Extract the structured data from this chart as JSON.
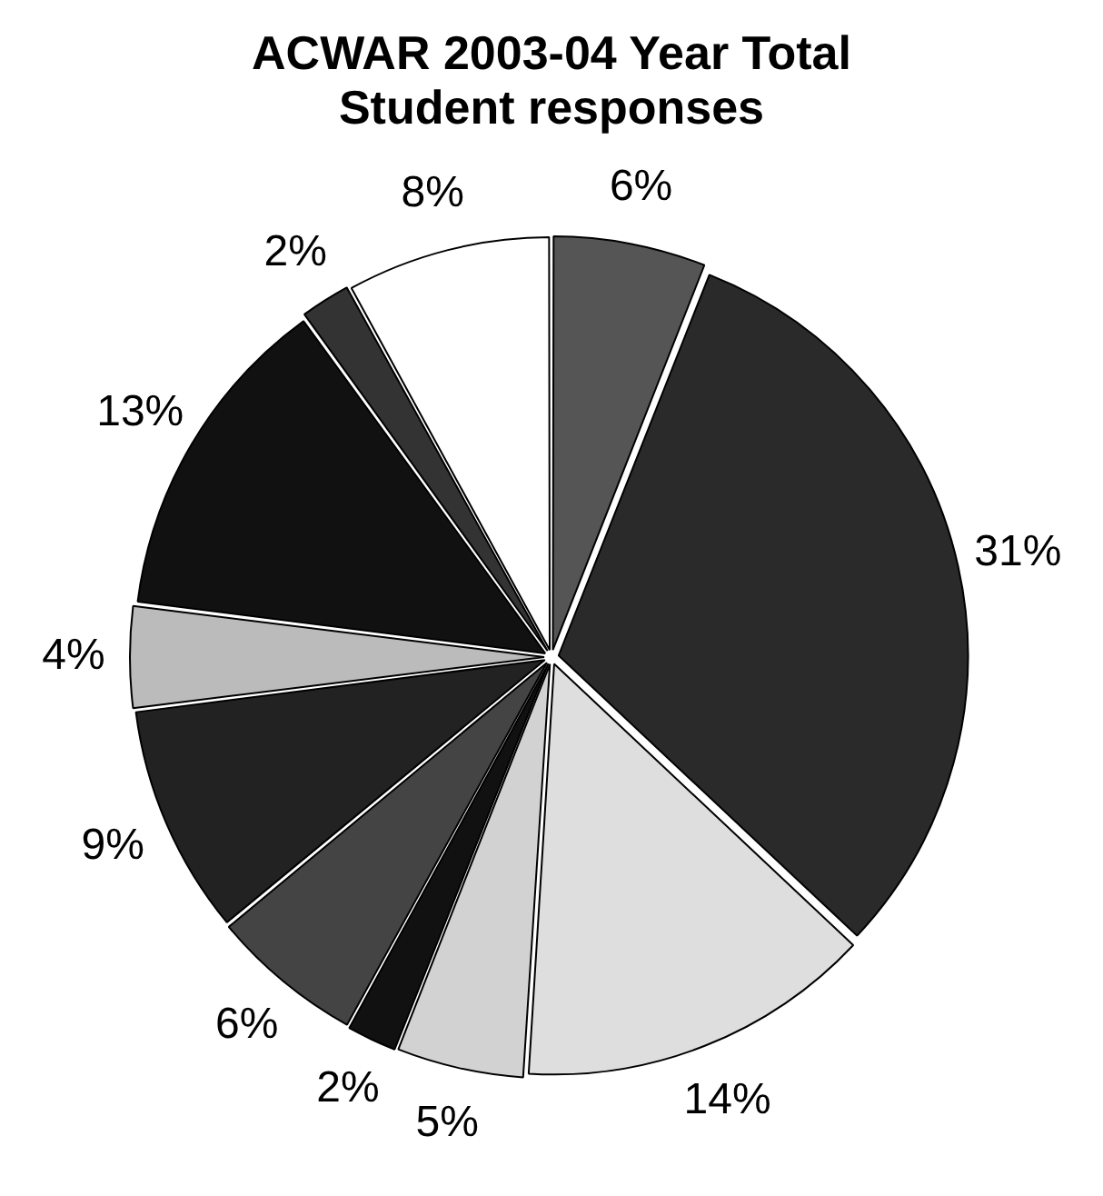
{
  "chart_data": {
    "type": "pie",
    "title": "ACWAR 2003-04 Year Total Student responses",
    "categories": [
      null,
      null,
      null,
      null,
      null,
      null,
      null,
      null,
      null,
      null,
      null
    ],
    "values": [
      6,
      31,
      14,
      5,
      2,
      6,
      9,
      4,
      13,
      2,
      8
    ],
    "value_labels": [
      "6%",
      "31%",
      "14%",
      "5%",
      "2%",
      "6%",
      "9%",
      "4%",
      "13%",
      "2%",
      "8%"
    ],
    "colors": [
      "#555555",
      "#2a2a2a",
      "#dedede",
      "#d2d2d2",
      "#111111",
      "#444444",
      "#222222",
      "#bbbbbb",
      "#111111",
      "#333333",
      "#ffffff"
    ],
    "legend": false
  }
}
